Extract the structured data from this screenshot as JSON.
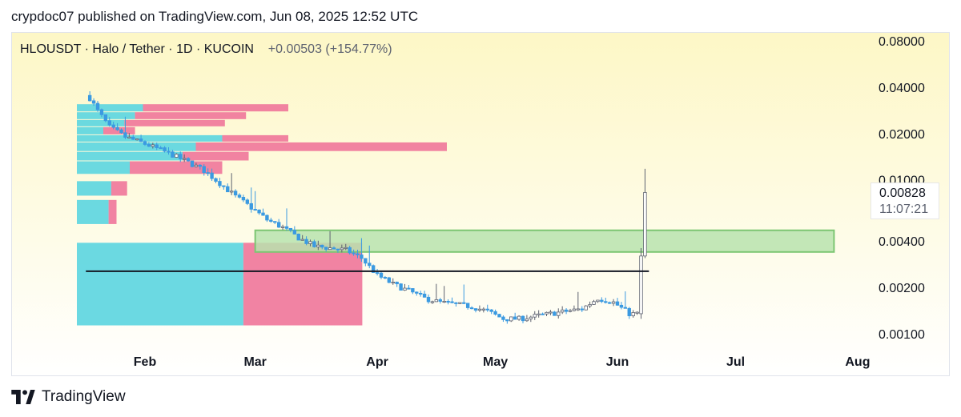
{
  "header": {
    "published_text": "crypdoc07 published on TradingView.com, Jun 08, 2025 12:52 UTC"
  },
  "legend": {
    "symbol": "HLOUSDT",
    "pair": "Halo / Tether",
    "interval": "1D",
    "exchange": "KUCOIN",
    "change": "+0.00503",
    "change_percent": "(+154.77%)"
  },
  "last_price": {
    "price": "0.00828",
    "countdown": "11:07:21"
  },
  "branding": {
    "name": "TradingView",
    "logo_icon": "tradingview-logo-icon"
  },
  "colors": {
    "background_top": "#fdf7c6",
    "background_bottom": "#ffffff",
    "candle_up": "#ffffff",
    "candle_down": "#3b9ae1",
    "volume_profile_buy": "#5bd5e0",
    "volume_profile_sell": "#f0769a",
    "demand_zone_fill": "#b9e3ae",
    "demand_zone_border": "#7dc673",
    "support_line": "#131722"
  },
  "chart_data": {
    "type": "candlestick",
    "symbol": "HLOUSDT",
    "y_scale": "log",
    "ylim": [
      0.00085,
      0.09
    ],
    "y_ticks": [
      "0.08000",
      "0.04000",
      "0.02000",
      "0.01000",
      "0.00400",
      "0.00200",
      "0.00100"
    ],
    "x_ticks": [
      "Feb",
      "Mar",
      "Apr",
      "May",
      "Jun",
      "Jul",
      "Aug"
    ],
    "x_range": [
      "2025-01-15",
      "2025-08-08"
    ],
    "grid": false,
    "price_path": [
      [
        "2025-01-18",
        0.034
      ],
      [
        "2025-01-20",
        0.028
      ],
      [
        "2025-01-23",
        0.022
      ],
      [
        "2025-01-27",
        0.019
      ],
      [
        "2025-01-31",
        0.0175
      ],
      [
        "2025-02-04",
        0.016
      ],
      [
        "2025-02-08",
        0.0145
      ],
      [
        "2025-02-12",
        0.013
      ],
      [
        "2025-02-16",
        0.0115
      ],
      [
        "2025-02-20",
        0.0095
      ],
      [
        "2025-02-24",
        0.0078
      ],
      [
        "2025-02-28",
        0.0066
      ],
      [
        "2025-03-04",
        0.0055
      ],
      [
        "2025-03-08",
        0.0049
      ],
      [
        "2025-03-12",
        0.0042
      ],
      [
        "2025-03-16",
        0.0037
      ],
      [
        "2025-03-20",
        0.0036
      ],
      [
        "2025-03-24",
        0.0035
      ],
      [
        "2025-03-28",
        0.0031
      ],
      [
        "2025-04-01",
        0.0024
      ],
      [
        "2025-04-05",
        0.0021
      ],
      [
        "2025-04-09",
        0.0019
      ],
      [
        "2025-04-13",
        0.0017
      ],
      [
        "2025-04-17",
        0.0016
      ],
      [
        "2025-04-21",
        0.00155
      ],
      [
        "2025-04-25",
        0.0015
      ],
      [
        "2025-04-29",
        0.0014
      ],
      [
        "2025-05-03",
        0.00125
      ],
      [
        "2025-05-07",
        0.00125
      ],
      [
        "2025-05-11",
        0.0013
      ],
      [
        "2025-05-15",
        0.00135
      ],
      [
        "2025-05-19",
        0.0014
      ],
      [
        "2025-05-23",
        0.00145
      ],
      [
        "2025-05-27",
        0.0017
      ],
      [
        "2025-05-31",
        0.0016
      ],
      [
        "2025-06-04",
        0.00135
      ],
      [
        "2025-06-06",
        0.00135
      ],
      [
        "2025-06-07",
        0.0032
      ],
      [
        "2025-06-08",
        0.00828
      ]
    ],
    "final_candles": [
      {
        "date": "2025-06-07",
        "open": 0.00135,
        "high": 0.0036,
        "low": 0.00125,
        "close": 0.0032
      },
      {
        "date": "2025-06-08",
        "open": 0.0032,
        "high": 0.0118,
        "low": 0.0031,
        "close": 0.00828
      }
    ],
    "demand_zone": {
      "from": "2025-03-01",
      "to": "2025-07-26",
      "low": 0.0034,
      "high": 0.0047
    },
    "support_line": {
      "price": 0.00255,
      "from": "2025-01-17",
      "to": "2025-06-09"
    },
    "volume_profile": [
      {
        "low": 0.0275,
        "high": 0.031,
        "buy": 0.25,
        "sell": 0.55
      },
      {
        "low": 0.0245,
        "high": 0.0275,
        "buy": 0.22,
        "sell": 0.42
      },
      {
        "low": 0.022,
        "high": 0.0245,
        "buy": 0.18,
        "sell": 0.38
      },
      {
        "low": 0.0195,
        "high": 0.022,
        "buy": 0.1,
        "sell": 0.12
      },
      {
        "low": 0.0175,
        "high": 0.0195,
        "buy": 0.55,
        "sell": 0.25
      },
      {
        "low": 0.0152,
        "high": 0.0175,
        "buy": 0.45,
        "sell": 0.95
      },
      {
        "low": 0.0132,
        "high": 0.0152,
        "buy": 0.4,
        "sell": 0.25
      },
      {
        "low": 0.0108,
        "high": 0.0132,
        "buy": 0.2,
        "sell": 0.35
      },
      {
        "low": 0.0078,
        "high": 0.0098,
        "buy": 0.13,
        "sell": 0.06
      },
      {
        "low": 0.0051,
        "high": 0.0074,
        "buy": 0.12,
        "sell": 0.03
      },
      {
        "low": 0.00112,
        "high": 0.0039,
        "buy": 0.63,
        "sell": 0.45
      }
    ]
  }
}
